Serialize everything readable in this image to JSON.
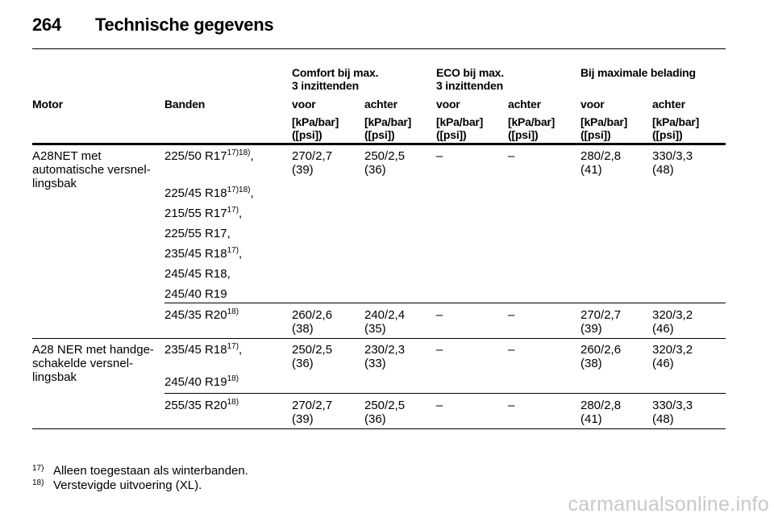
{
  "page_header": {
    "page_number": "264",
    "title": "Technische gegevens"
  },
  "group_headers": {
    "comfort": [
      "Comfort bij max.",
      "3 inzittenden"
    ],
    "eco": [
      "ECO bij max.",
      "3 inzittenden"
    ],
    "max": "Bij maximale belading"
  },
  "columns": {
    "motor": "Motor",
    "banden": "Banden",
    "voor": "voor",
    "achter": "achter",
    "unit": [
      "[kPa/bar]",
      "([psi])"
    ]
  },
  "motors": {
    "m1": [
      "A28NET met",
      "automatische versnel-",
      "lingsbak"
    ],
    "m2": [
      "A28 NER met handge-",
      "schakelde versnel-",
      "lingsbak"
    ]
  },
  "tires": {
    "r1": [
      {
        "size": "225/50 R17",
        "sup": "17)18)",
        "suffix": ","
      },
      {
        "size": "225/45 R18",
        "sup": "17)18)",
        "suffix": ","
      },
      {
        "size": "215/55 R17",
        "sup": "17)",
        "suffix": ","
      },
      {
        "size": "225/55 R17,",
        "sup": "",
        "suffix": ""
      },
      {
        "size": "235/45 R18",
        "sup": "17)",
        "suffix": ","
      },
      {
        "size": "245/45 R18,",
        "sup": "",
        "suffix": ""
      },
      {
        "size": "245/40 R19",
        "sup": "",
        "suffix": ""
      }
    ],
    "r2": [
      {
        "size": "245/35 R20",
        "sup": "18)",
        "suffix": ""
      }
    ],
    "r3": [
      {
        "size": "235/45 R18",
        "sup": "17)",
        "suffix": ","
      },
      {
        "size": "245/40 R19",
        "sup": "18)",
        "suffix": ""
      }
    ],
    "r4": [
      {
        "size": "255/35 R20",
        "sup": "18)",
        "suffix": ""
      }
    ]
  },
  "pressures": {
    "r1": [
      [
        "270/2,7",
        "(39)"
      ],
      [
        "250/2,5",
        "(36)"
      ],
      [
        "–",
        ""
      ],
      [
        "–",
        ""
      ],
      [
        "280/2,8",
        "(41)"
      ],
      [
        "330/3,3",
        "(48)"
      ]
    ],
    "r2": [
      [
        "260/2,6",
        "(38)"
      ],
      [
        "240/2,4",
        "(35)"
      ],
      [
        "–",
        ""
      ],
      [
        "–",
        ""
      ],
      [
        "270/2,7",
        "(39)"
      ],
      [
        "320/3,2",
        "(46)"
      ]
    ],
    "r3": [
      [
        "250/2,5",
        "(36)"
      ],
      [
        "230/2,3",
        "(33)"
      ],
      [
        "–",
        ""
      ],
      [
        "–",
        ""
      ],
      [
        "260/2,6",
        "(38)"
      ],
      [
        "320/3,2",
        "(46)"
      ]
    ],
    "r4": [
      [
        "270/2,7",
        "(39)"
      ],
      [
        "250/2,5",
        "(36)"
      ],
      [
        "–",
        ""
      ],
      [
        "–",
        ""
      ],
      [
        "280/2,8",
        "(41)"
      ],
      [
        "330/3,3",
        "(48)"
      ]
    ]
  },
  "footnotes": {
    "f17": {
      "mark": "17)",
      "text": "Alleen toegestaan als winterbanden."
    },
    "f18": {
      "mark": "18)",
      "text": "Verstevigde uitvoering (XL)."
    }
  },
  "watermark": "carmanualsonline.info"
}
